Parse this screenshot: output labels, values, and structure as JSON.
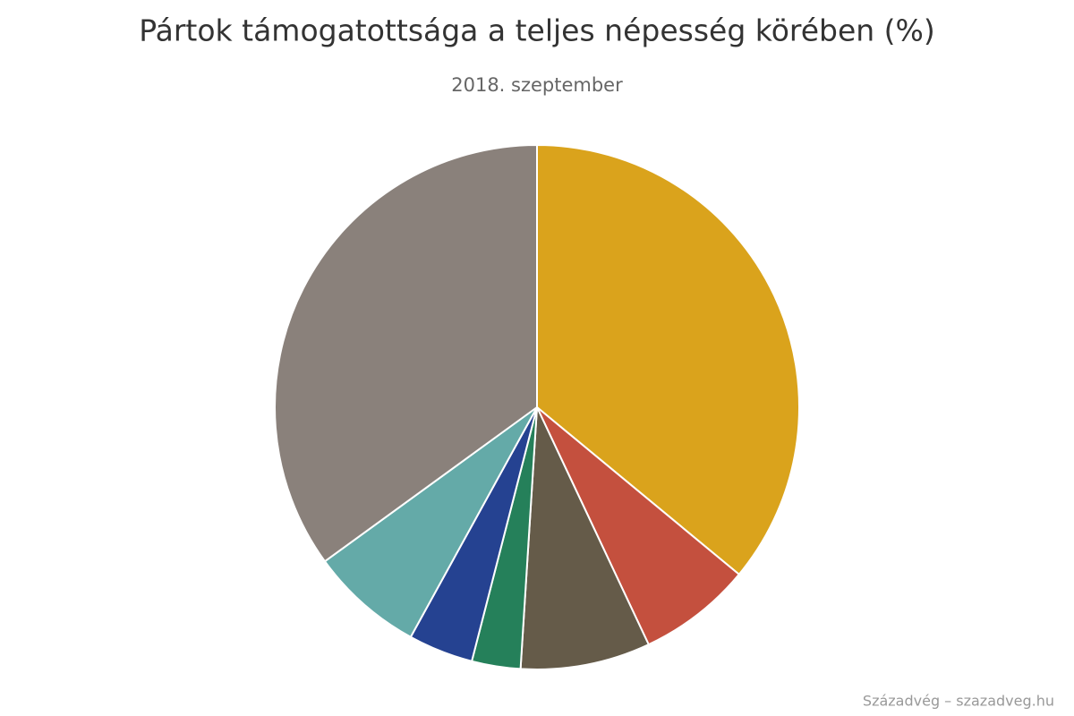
{
  "chart_data": {
    "type": "pie",
    "title": "Pártok támogatottsága a teljes népesség körében (%)",
    "subtitle": "2018. szeptember",
    "credits": "Századvég – szazadveg.hu",
    "categories": [
      null,
      null,
      null,
      null,
      null,
      null,
      null
    ],
    "values": [
      36,
      7,
      8,
      3,
      4,
      7,
      35
    ],
    "colors": [
      "#daa31c",
      "#c4503e",
      "#655b49",
      "#25805a",
      "#254291",
      "#64aaa8",
      "#8a817b"
    ],
    "start_angle": 0,
    "direction": "clockwise"
  }
}
